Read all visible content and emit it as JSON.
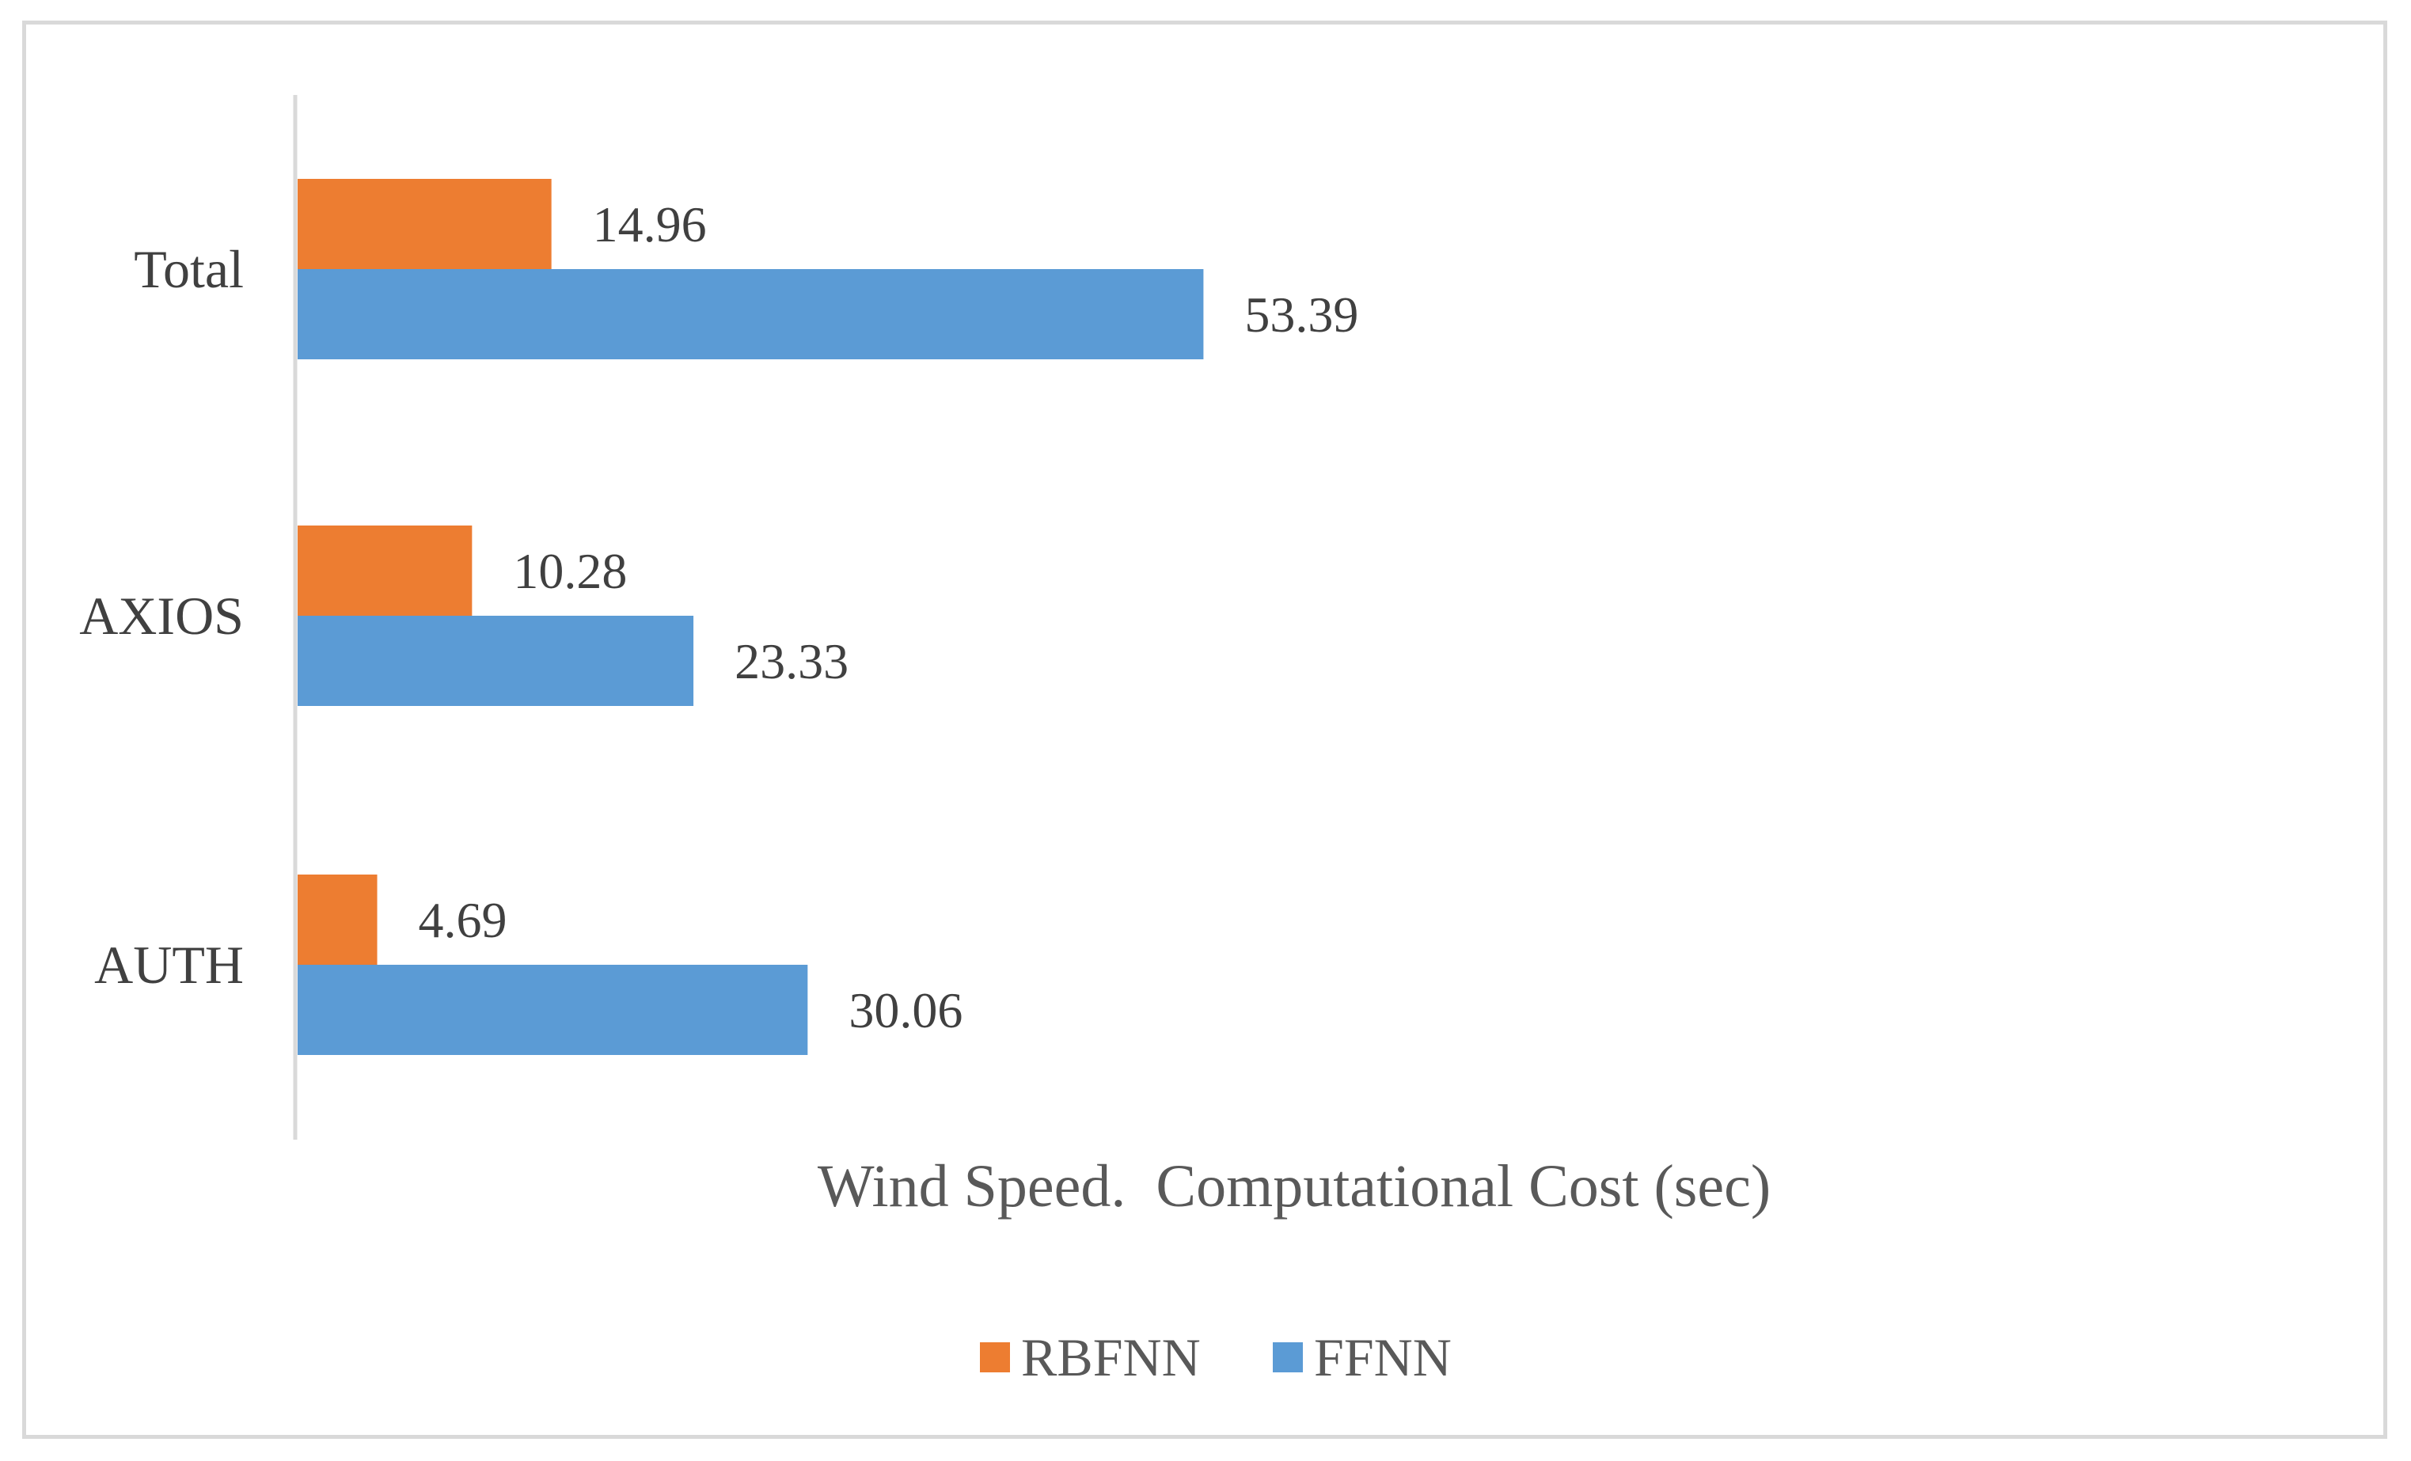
{
  "chart_data": {
    "type": "bar",
    "orientation": "horizontal",
    "title": "",
    "xlabel": "Wind Speed.  Computational Cost (sec)",
    "ylabel": "",
    "categories": [
      "AUTH",
      "AXIOS",
      "Total"
    ],
    "series": [
      {
        "name": "RBFNN",
        "color": "#ED7D31",
        "values": [
          4.69,
          10.28,
          14.96
        ],
        "labels": [
          "4.69",
          "10.28",
          "14.96"
        ]
      },
      {
        "name": "FFNN",
        "color": "#5B9BD5",
        "values": [
          30.06,
          23.33,
          53.39
        ],
        "labels": [
          "30.06",
          "23.33",
          "53.39"
        ]
      }
    ],
    "xlim": [
      0,
      60
    ],
    "grid": false,
    "legend_position": "bottom"
  }
}
